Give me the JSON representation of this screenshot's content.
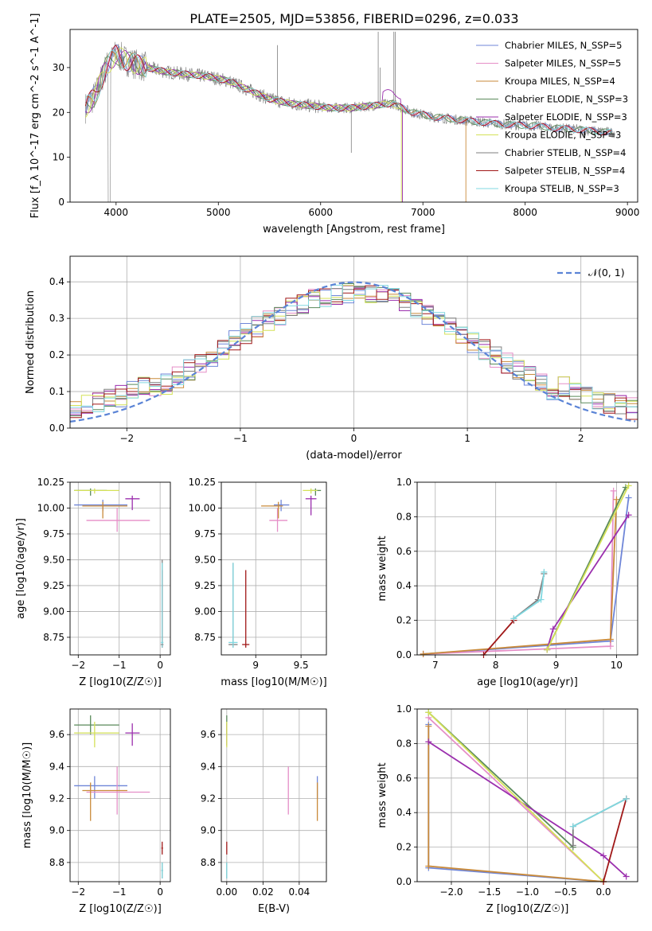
{
  "figure_title": "PLATE=2505, MJD=53856, FIBERID=0296, z=0.033",
  "colors": {
    "chabrier_miles": "#6f86d8",
    "salpeter_miles": "#e58ec7",
    "kroupa_miles": "#c98a3a",
    "chabrier_elodie": "#5a8a5a",
    "salpeter_elodie": "#9b2fae",
    "kroupa_elodie": "#d4e157",
    "chabrier_stelib": "#7f7f7f",
    "salpeter_stelib": "#a01818",
    "kroupa_stelib": "#80d8e0",
    "normal_curve": "#5b84d6",
    "grid": "#b0b0b0"
  },
  "chart_data": [
    {
      "id": "spectrum",
      "type": "line",
      "title": "PLATE=2505, MJD=53856, FIBERID=0296, z=0.033",
      "xlabel": "wavelength [Angstrom, rest frame]",
      "ylabel": "Flux [f_λ 10^-17 erg cm^-2 s^-1 A^-1]",
      "xlim": [
        3550,
        9100
      ],
      "ylim": [
        0,
        38.5
      ],
      "xticks": [
        4000,
        5000,
        6000,
        7000,
        8000,
        9000
      ],
      "yticks": [
        0,
        10,
        20,
        30
      ],
      "grid": false,
      "legend_position": "top-right",
      "legend": [
        {
          "label": "Chabrier MILES, N_SSP=5",
          "color_key": "chabrier_miles"
        },
        {
          "label": "Salpeter MILES, N_SSP=5",
          "color_key": "salpeter_miles"
        },
        {
          "label": "Kroupa MILES, N_SSP=4",
          "color_key": "kroupa_miles"
        },
        {
          "label": "Chabrier ELODIE, N_SSP=3",
          "color_key": "chabrier_elodie"
        },
        {
          "label": "Salpeter ELODIE, N_SSP=3",
          "color_key": "salpeter_elodie"
        },
        {
          "label": "Kroupa ELODIE, N_SSP=3",
          "color_key": "kroupa_elodie"
        },
        {
          "label": "Chabrier STELIB, N_SSP=4",
          "color_key": "chabrier_stelib"
        },
        {
          "label": "Salpeter STELIB, N_SSP=4",
          "color_key": "salpeter_stelib"
        },
        {
          "label": "Kroupa STELIB, N_SSP=3",
          "color_key": "kroupa_stelib"
        }
      ],
      "continuum": {
        "x": [
          3700,
          3800,
          3900,
          4000,
          4100,
          4300,
          4500,
          4700,
          4900,
          5100,
          5300,
          5500,
          5700,
          5900,
          6100,
          6300,
          6500,
          6700,
          6900,
          7100,
          7300,
          7500,
          7700,
          7900,
          8100,
          8300,
          8500,
          8700,
          8850
        ],
        "y": [
          21,
          24,
          30,
          33,
          31.5,
          30,
          29,
          28.5,
          28,
          27,
          25,
          23,
          22,
          21.5,
          21,
          21,
          21.5,
          22,
          20,
          19,
          18.5,
          18,
          17.5,
          17.2,
          17,
          16.5,
          16.2,
          15.8,
          15.5
        ]
      },
      "model_cutoffs": [
        {
          "series": "kroupa_miles",
          "end_x": 7420
        },
        {
          "series": "kroupa_elodie",
          "end_x": 6790
        },
        {
          "series": "salpeter_elodie",
          "end_x": 6800
        }
      ]
    },
    {
      "id": "residuals",
      "type": "step",
      "xlabel": "(data-model)/error",
      "ylabel": "Normed distribution",
      "xlim": [
        -2.5,
        2.5
      ],
      "ylim": [
        0,
        0.47
      ],
      "xticks": [
        -2,
        -1,
        0,
        1,
        2
      ],
      "yticks": [
        0.0,
        0.1,
        0.2,
        0.3,
        0.4
      ],
      "grid": true,
      "legend_position": "top-right",
      "legend": [
        {
          "label": "𝒩(0, 1)",
          "color_key": "normal_curve",
          "style": "dashed"
        }
      ],
      "bin_width": 0.1,
      "reference_curve": {
        "type": "gaussian",
        "mean": 0,
        "sigma": 1
      }
    },
    {
      "id": "age_vs_Z",
      "type": "errorbar",
      "xlabel": "Z [log10(Z/Z☉)]",
      "ylabel": "age [log10(age/yr)]",
      "xlim": [
        -2.2,
        0.25
      ],
      "ylim": [
        8.58,
        10.25
      ],
      "xticks": [
        -2,
        -1,
        0
      ],
      "yticks": [
        8.75,
        9.0,
        9.25,
        9.5,
        9.75,
        10.0,
        10.25
      ],
      "grid": true,
      "points": [
        {
          "s": "chabrier_miles",
          "x": -1.4,
          "xlo": -2.1,
          "xhi": -0.8,
          "y": 10.03,
          "ylo": 9.97,
          "yhi": 10.08
        },
        {
          "s": "salpeter_miles",
          "x": -1.05,
          "xlo": -1.8,
          "xhi": -0.25,
          "y": 9.88,
          "ylo": 9.77,
          "yhi": 10.0
        },
        {
          "s": "kroupa_miles",
          "x": -1.4,
          "xlo": -1.9,
          "xhi": -0.8,
          "y": 10.02,
          "ylo": 9.9,
          "yhi": 10.06
        },
        {
          "s": "chabrier_elodie",
          "x": -1.7,
          "xlo": -2.1,
          "xhi": -1.3,
          "y": 10.17,
          "ylo": 10.12,
          "yhi": 10.19
        },
        {
          "s": "salpeter_elodie",
          "x": -0.68,
          "xlo": -0.85,
          "xhi": -0.5,
          "y": 10.09,
          "ylo": 9.98,
          "yhi": 10.12
        },
        {
          "s": "kroupa_elodie",
          "x": -1.6,
          "xlo": -2.1,
          "xhi": -1.0,
          "y": 10.17,
          "ylo": 10.14,
          "yhi": 10.19
        },
        {
          "s": "chabrier_stelib",
          "x": 0.05,
          "xlo": 0.02,
          "xhi": 0.08,
          "y": 8.68,
          "ylo": 8.65,
          "yhi": 9.5
        },
        {
          "s": "salpeter_stelib",
          "x": 0.05,
          "xlo": 0.03,
          "xhi": 0.07,
          "y": 8.68,
          "ylo": 8.65,
          "yhi": 9.4
        },
        {
          "s": "kroupa_stelib",
          "x": 0.05,
          "xlo": 0.02,
          "xhi": 0.08,
          "y": 8.7,
          "ylo": 8.65,
          "yhi": 9.47
        }
      ]
    },
    {
      "id": "age_vs_mass",
      "type": "errorbar",
      "xlabel": "mass [log10(M/M☉)]",
      "ylabel": "",
      "xlim": [
        8.62,
        9.78
      ],
      "ylim": [
        8.58,
        10.25
      ],
      "xticks": [
        9.0,
        9.5
      ],
      "yticks": [
        8.75,
        9.0,
        9.25,
        9.5,
        9.75,
        10.0,
        10.25
      ],
      "grid": true,
      "points": [
        {
          "s": "chabrier_miles",
          "x": 9.28,
          "xlo": 9.2,
          "xhi": 9.37,
          "y": 10.03,
          "ylo": 9.97,
          "yhi": 10.08
        },
        {
          "s": "salpeter_miles",
          "x": 9.24,
          "xlo": 9.15,
          "xhi": 9.35,
          "y": 9.88,
          "ylo": 9.77,
          "yhi": 10.0
        },
        {
          "s": "kroupa_miles",
          "x": 9.25,
          "xlo": 9.06,
          "xhi": 9.3,
          "y": 10.02,
          "ylo": 9.9,
          "yhi": 10.06
        },
        {
          "s": "chabrier_elodie",
          "x": 9.66,
          "xlo": 9.6,
          "xhi": 9.72,
          "y": 10.17,
          "ylo": 10.12,
          "yhi": 10.19
        },
        {
          "s": "salpeter_elodie",
          "x": 9.61,
          "xlo": 9.55,
          "xhi": 9.67,
          "y": 10.09,
          "ylo": 9.93,
          "yhi": 10.12
        },
        {
          "s": "kroupa_elodie",
          "x": 9.61,
          "xlo": 9.52,
          "xhi": 9.68,
          "y": 10.17,
          "ylo": 10.14,
          "yhi": 10.19
        },
        {
          "s": "chabrier_stelib",
          "x": 8.75,
          "xlo": 8.7,
          "xhi": 8.8,
          "y": 8.68,
          "ylo": 8.65,
          "yhi": 9.47
        },
        {
          "s": "salpeter_stelib",
          "x": 8.89,
          "xlo": 8.85,
          "xhi": 8.93,
          "y": 8.68,
          "ylo": 8.65,
          "yhi": 9.4
        },
        {
          "s": "kroupa_stelib",
          "x": 8.75,
          "xlo": 8.7,
          "xhi": 8.8,
          "y": 8.7,
          "ylo": 8.65,
          "yhi": 9.47
        }
      ]
    },
    {
      "id": "weight_vs_age",
      "type": "line",
      "xlabel": "age [log10(age/yr)]",
      "ylabel": "mass weight",
      "xlim": [
        6.7,
        10.35
      ],
      "ylim": [
        0,
        1.0
      ],
      "xticks": [
        7,
        8,
        9,
        10
      ],
      "yticks": [
        0.0,
        0.2,
        0.4,
        0.6,
        0.8,
        1.0
      ],
      "grid": true,
      "series": [
        {
          "s": "chabrier_miles",
          "x": [
            6.8,
            9.9,
            10.2
          ],
          "y": [
            0.005,
            0.08,
            0.91
          ]
        },
        {
          "s": "salpeter_miles",
          "x": [
            6.8,
            9.9,
            9.95
          ],
          "y": [
            0.005,
            0.05,
            0.95
          ]
        },
        {
          "s": "kroupa_miles",
          "x": [
            6.8,
            9.9,
            10.0
          ],
          "y": [
            0.005,
            0.09,
            0.9
          ]
        },
        {
          "s": "chabrier_elodie",
          "x": [
            8.85,
            10.15
          ],
          "y": [
            0.03,
            0.97
          ]
        },
        {
          "s": "salpeter_elodie",
          "x": [
            8.85,
            8.95,
            10.2
          ],
          "y": [
            0.03,
            0.15,
            0.81
          ]
        },
        {
          "s": "kroupa_elodie",
          "x": [
            8.85,
            10.2
          ],
          "y": [
            0.03,
            0.98
          ]
        },
        {
          "s": "chabrier_stelib",
          "x": [
            8.3,
            8.7,
            8.8
          ],
          "y": [
            0.21,
            0.32,
            0.47
          ]
        },
        {
          "s": "salpeter_stelib",
          "x": [
            7.8,
            8.3
          ],
          "y": [
            0.0,
            0.2
          ]
        },
        {
          "s": "kroupa_stelib",
          "x": [
            8.3,
            8.75,
            8.8
          ],
          "y": [
            0.21,
            0.32,
            0.48
          ]
        }
      ]
    },
    {
      "id": "mass_vs_Z",
      "type": "errorbar",
      "xlabel": "Z [log10(Z/Z☉)]",
      "ylabel": "mass [log10(M/M☉)]",
      "xlim": [
        -2.2,
        0.25
      ],
      "ylim": [
        8.68,
        9.76
      ],
      "xticks": [
        -2,
        -1,
        0
      ],
      "yticks": [
        8.8,
        9.0,
        9.2,
        9.4,
        9.6
      ],
      "grid": true,
      "points": [
        {
          "s": "chabrier_miles",
          "x": -1.6,
          "xlo": -2.1,
          "xhi": -0.8,
          "y": 9.28,
          "ylo": 9.2,
          "yhi": 9.34
        },
        {
          "s": "salpeter_miles",
          "x": -1.05,
          "xlo": -1.8,
          "xhi": -0.25,
          "y": 9.24,
          "ylo": 9.1,
          "yhi": 9.4
        },
        {
          "s": "kroupa_miles",
          "x": -1.7,
          "xlo": -1.9,
          "xhi": -0.8,
          "y": 9.25,
          "ylo": 9.06,
          "yhi": 9.3
        },
        {
          "s": "chabrier_elodie",
          "x": -1.7,
          "xlo": -2.1,
          "xhi": -1.0,
          "y": 9.66,
          "ylo": 9.6,
          "yhi": 9.72
        },
        {
          "s": "salpeter_elodie",
          "x": -0.68,
          "xlo": -0.85,
          "xhi": -0.5,
          "y": 9.61,
          "ylo": 9.53,
          "yhi": 9.67
        },
        {
          "s": "kroupa_elodie",
          "x": -1.6,
          "xlo": -2.1,
          "xhi": -1.0,
          "y": 9.61,
          "ylo": 9.52,
          "yhi": 9.68
        },
        {
          "s": "chabrier_stelib",
          "x": 0.05,
          "xlo": 0.03,
          "xhi": 0.07,
          "y": 8.75,
          "ylo": 8.7,
          "yhi": 8.8
        },
        {
          "s": "salpeter_stelib",
          "x": 0.05,
          "xlo": 0.03,
          "xhi": 0.07,
          "y": 8.89,
          "ylo": 8.85,
          "yhi": 8.93
        },
        {
          "s": "kroupa_stelib",
          "x": 0.05,
          "xlo": 0.03,
          "xhi": 0.07,
          "y": 8.75,
          "ylo": 8.7,
          "yhi": 8.8
        }
      ]
    },
    {
      "id": "mass_vs_ebv",
      "type": "errorbar",
      "xlabel": "E(B-V)",
      "ylabel": "",
      "xlim": [
        -0.003,
        0.055
      ],
      "ylim": [
        8.68,
        9.76
      ],
      "xticks": [
        0.0,
        0.02,
        0.04
      ],
      "yticks": [
        8.8,
        9.0,
        9.2,
        9.4,
        9.6
      ],
      "grid": true,
      "points": [
        {
          "s": "chabrier_miles",
          "x": 0.05,
          "y": 9.28,
          "ylo": 9.2,
          "yhi": 9.34
        },
        {
          "s": "salpeter_miles",
          "x": 0.034,
          "y": 9.24,
          "ylo": 9.1,
          "yhi": 9.4
        },
        {
          "s": "kroupa_miles",
          "x": 0.05,
          "y": 9.25,
          "ylo": 9.06,
          "yhi": 9.3
        },
        {
          "s": "chabrier_elodie",
          "x": 0.0,
          "y": 9.66,
          "ylo": 9.6,
          "yhi": 9.72
        },
        {
          "s": "salpeter_elodie",
          "x": 0.0,
          "y": 9.61,
          "ylo": 9.53,
          "yhi": 9.67
        },
        {
          "s": "kroupa_elodie",
          "x": 0.0,
          "y": 9.61,
          "ylo": 9.52,
          "yhi": 9.68
        },
        {
          "s": "chabrier_stelib",
          "x": 0.0,
          "y": 8.75,
          "ylo": 8.7,
          "yhi": 8.8
        },
        {
          "s": "salpeter_stelib",
          "x": 0.0,
          "y": 8.89,
          "ylo": 8.85,
          "yhi": 8.93
        },
        {
          "s": "kroupa_stelib",
          "x": 0.0,
          "y": 8.75,
          "ylo": 8.7,
          "yhi": 8.8
        }
      ]
    },
    {
      "id": "weight_vs_Z",
      "type": "line",
      "xlabel": "Z [log10(Z/Z☉)]",
      "ylabel": "mass weight",
      "xlim": [
        -2.45,
        0.45
      ],
      "ylim": [
        0,
        1.0
      ],
      "xticks": [
        -2.0,
        -1.5,
        -1.0,
        -0.5,
        0.0
      ],
      "yticks": [
        0.0,
        0.2,
        0.4,
        0.6,
        0.8,
        1.0
      ],
      "grid": true,
      "series": [
        {
          "s": "chabrier_miles",
          "x": [
            -2.3,
            -2.3,
            0.0
          ],
          "y": [
            0.91,
            0.08,
            0.0
          ]
        },
        {
          "s": "salpeter_miles",
          "x": [
            -2.3,
            0.0
          ],
          "y": [
            0.95,
            0.0
          ]
        },
        {
          "s": "kroupa_miles",
          "x": [
            -2.3,
            -2.3,
            0.0
          ],
          "y": [
            0.9,
            0.09,
            0.0
          ]
        },
        {
          "s": "chabrier_elodie",
          "x": [
            -2.3,
            -0.4
          ],
          "y": [
            0.98,
            0.2
          ]
        },
        {
          "s": "salpeter_elodie",
          "x": [
            -2.3,
            0.0,
            0.3
          ],
          "y": [
            0.81,
            0.15,
            0.03
          ]
        },
        {
          "s": "kroupa_elodie",
          "x": [
            -2.3,
            0.0
          ],
          "y": [
            0.98,
            0.0
          ]
        },
        {
          "s": "chabrier_stelib",
          "x": [
            -0.4,
            -0.4,
            0.3
          ],
          "y": [
            0.21,
            0.32,
            0.48
          ]
        },
        {
          "s": "salpeter_stelib",
          "x": [
            0.0,
            0.3
          ],
          "y": [
            0.0,
            0.48
          ]
        },
        {
          "s": "kroupa_stelib",
          "x": [
            -0.4,
            0.3
          ],
          "y": [
            0.32,
            0.48
          ]
        }
      ]
    }
  ]
}
